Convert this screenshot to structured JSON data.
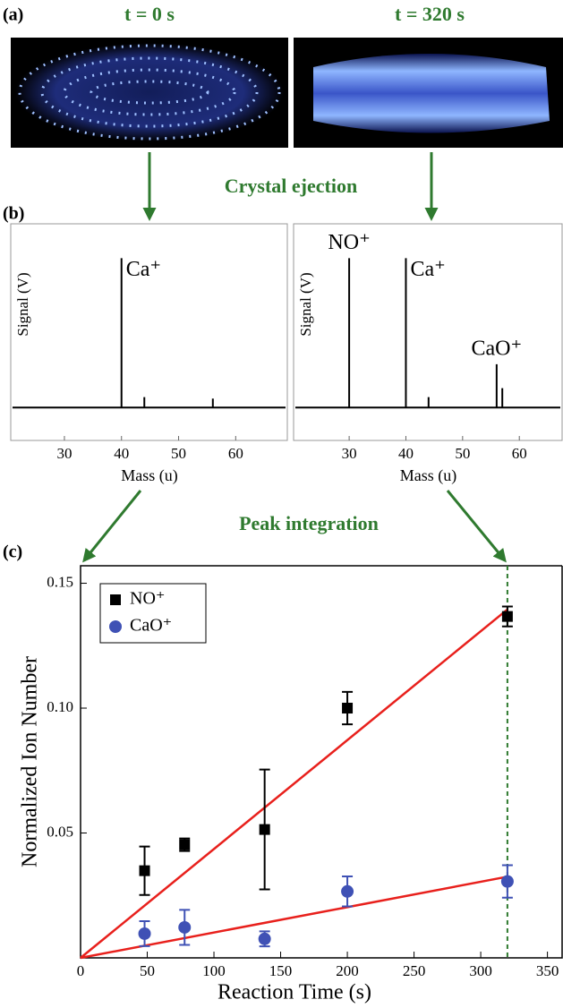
{
  "panel_labels": [
    "(a)",
    "(b)",
    "(c)"
  ],
  "images": [
    {
      "title": "t = 0 s"
    },
    {
      "title": "t = 320 s"
    }
  ],
  "steps": [
    "Crystal ejection",
    "Peak integration"
  ],
  "chart_data": [
    {
      "type": "spectrum",
      "x_label": "Mass (u)",
      "y_label": "Signal (V)",
      "color": "#000000",
      "x": [
        40,
        44,
        56
      ],
      "values": [
        1.0,
        0.07,
        0.06
      ],
      "annotations": [
        {
          "text": "Ca⁺",
          "x": 40
        }
      ],
      "xlim": [
        20.6,
        69.2
      ],
      "ylim": [
        -0.22,
        1.23
      ],
      "xticks": [
        30,
        40,
        50,
        60
      ]
    },
    {
      "type": "spectrum",
      "x_label": "Mass (u)",
      "y_label": "Signal (V)",
      "color": "#000000",
      "x": [
        30,
        40,
        44,
        56,
        57
      ],
      "values": [
        1.0,
        1.0,
        0.07,
        0.29,
        0.13
      ],
      "annotations": [
        {
          "text": "NO⁺",
          "x": 30
        },
        {
          "text": "Ca⁺",
          "x": 40
        },
        {
          "text": "CaO⁺",
          "x": 56
        }
      ],
      "xlim": [
        20.2,
        67.7
      ],
      "ylim": [
        -0.22,
        1.23
      ],
      "xticks": [
        30,
        40,
        50,
        60
      ]
    },
    {
      "type": "scatter",
      "x_label": "Reaction Time (s)",
      "y_label": "Normalized Ion Number",
      "series": [
        {
          "name": "NO⁺",
          "color": "#000000",
          "marker": "square",
          "x": [
            48,
            78,
            138,
            200,
            320
          ],
          "values": [
            0.0349,
            0.0453,
            0.0514,
            0.1,
            0.1367
          ],
          "errors": [
            0.0097,
            0.0025,
            0.024,
            0.0065,
            0.004
          ]
        },
        {
          "name": "CaO⁺",
          "color": "#3f51b5",
          "marker": "circle",
          "x": [
            48,
            78,
            138,
            200,
            320
          ],
          "values": [
            0.0097,
            0.0122,
            0.0076,
            0.0266,
            0.0306
          ],
          "errors": [
            0.005,
            0.007,
            0.003,
            0.006,
            0.0065
          ]
        }
      ],
      "fits": [
        {
          "color": "#e8201c",
          "x": [
            0,
            320
          ],
          "values": [
            0,
            0.1395
          ]
        },
        {
          "color": "#e8201c",
          "x": [
            0,
            320
          ],
          "values": [
            0,
            0.0325
          ]
        }
      ],
      "vline": {
        "x": 320,
        "color": "#2f7a2f"
      },
      "legend": "upper left",
      "xlim": [
        0,
        361
      ],
      "ylim": [
        0,
        0.157
      ],
      "xticks": [
        0,
        50,
        100,
        150,
        200,
        250,
        300,
        350
      ],
      "yticks": [
        0,
        0.05,
        {
          "value": 0.1,
          "label": "0.10"
        },
        0.15
      ]
    }
  ]
}
